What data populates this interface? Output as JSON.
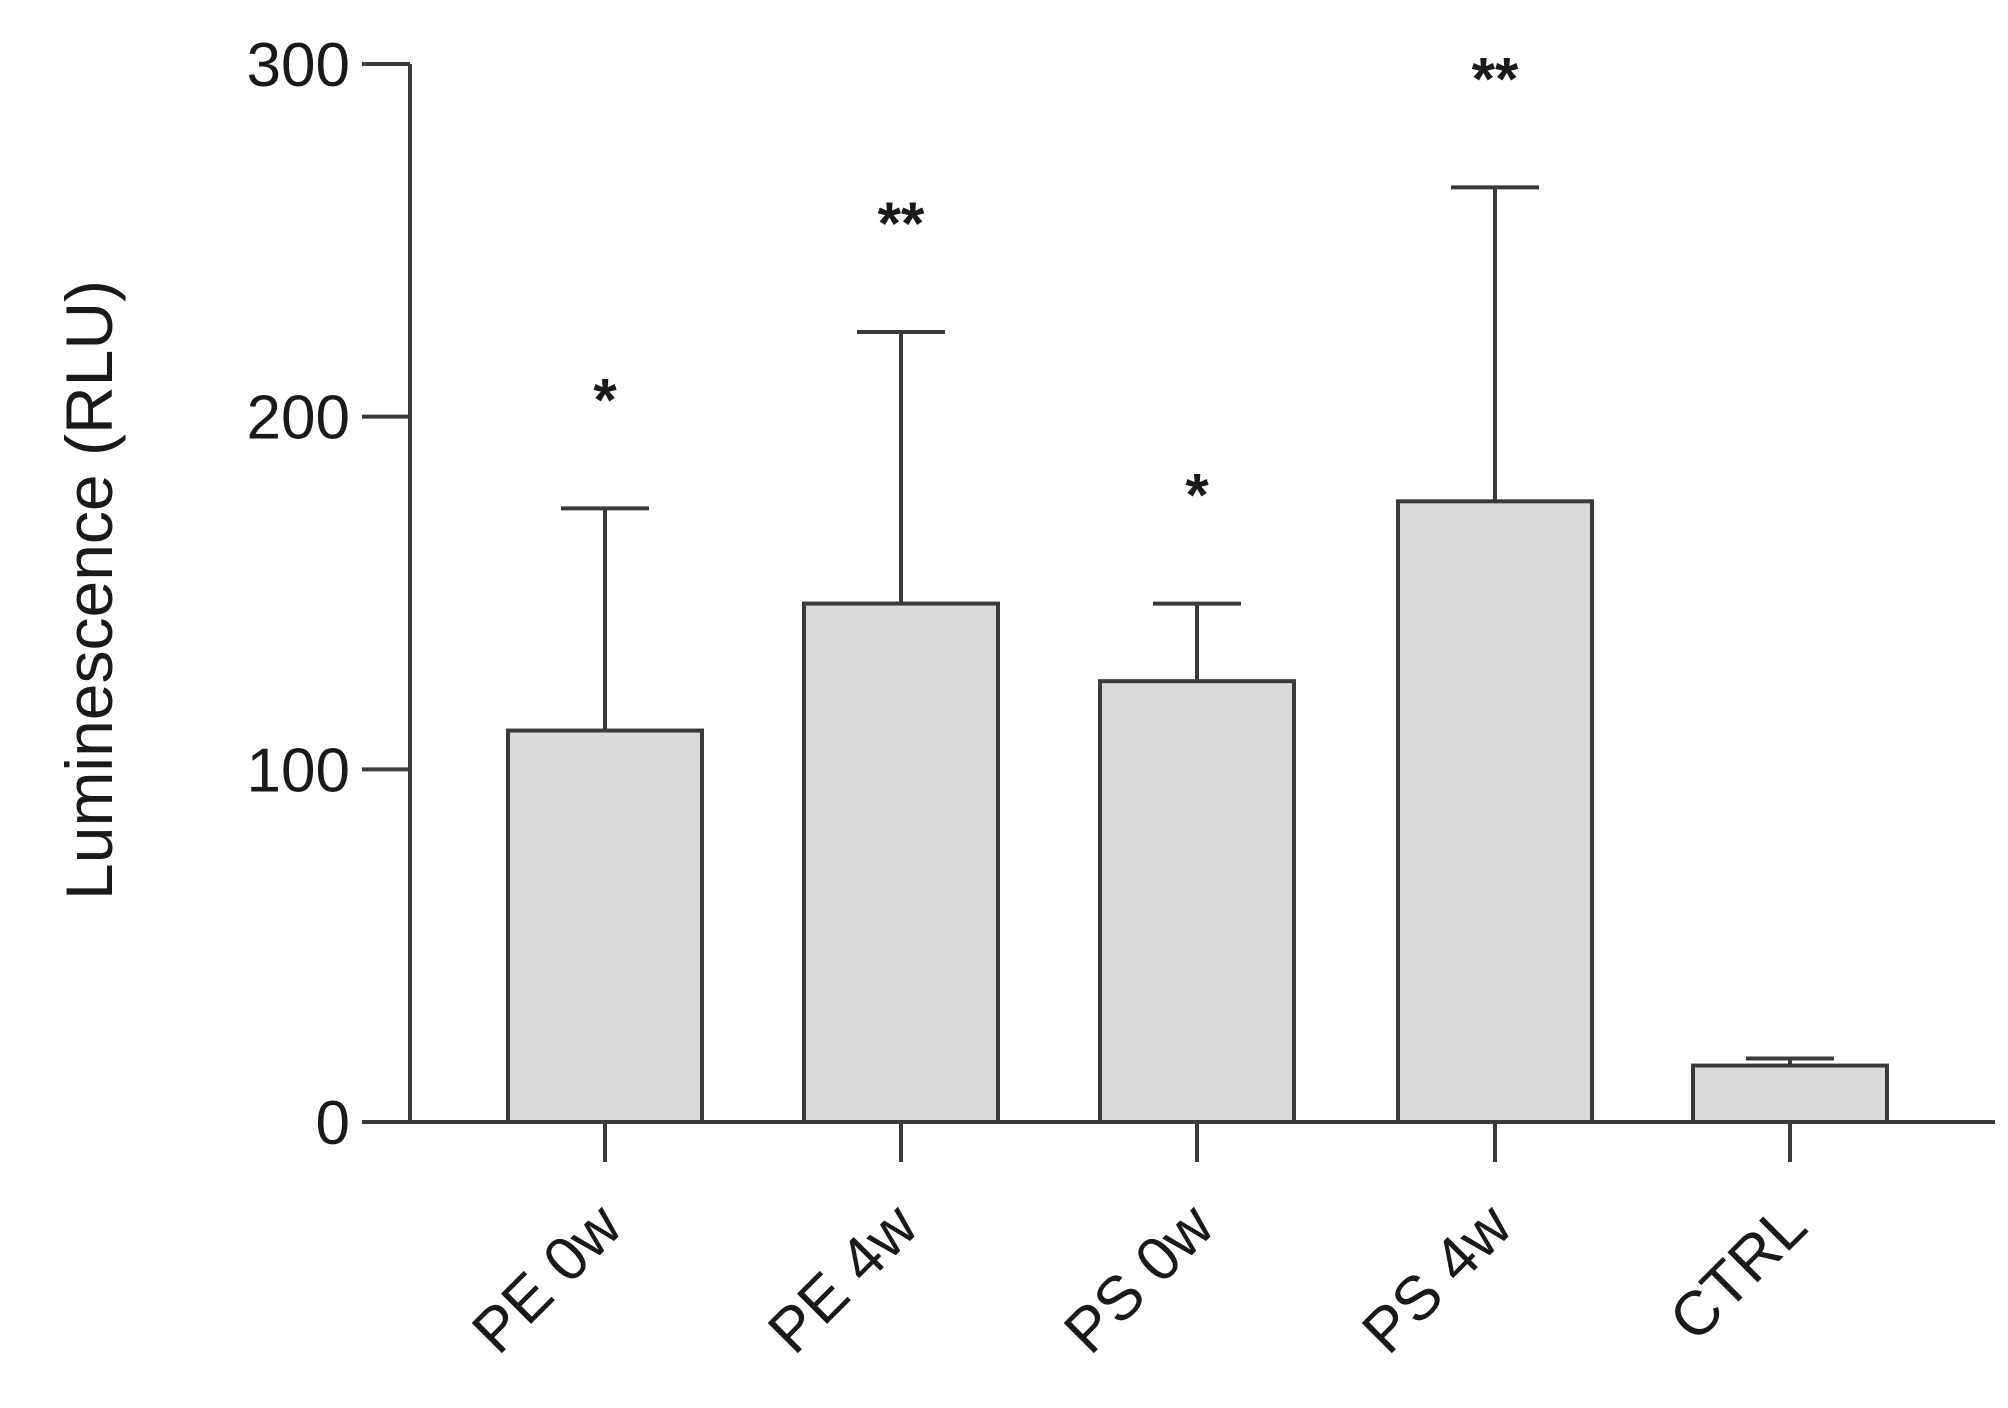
{
  "chart_data": {
    "type": "bar",
    "title": "",
    "xlabel": "",
    "ylabel": "Luminescence (RLU)",
    "ylim": [
      0,
      300
    ],
    "yticks": [
      "0",
      "100",
      "200",
      "300"
    ],
    "grid": false,
    "legend": "none",
    "categories": [
      "PE 0w",
      "PE 4w",
      "PS 0w",
      "PS 4w",
      "CTRL"
    ],
    "values": [
      111,
      147,
      125,
      176,
      16
    ],
    "error_upper": [
      174,
      224,
      147,
      265,
      18
    ],
    "significance": [
      "*",
      "**",
      "*",
      "**",
      ""
    ],
    "colors": {
      "bar_fill": "#d9d9d9",
      "bar_stroke": "#3a3a3a",
      "axis": "#3a3a3a"
    }
  }
}
